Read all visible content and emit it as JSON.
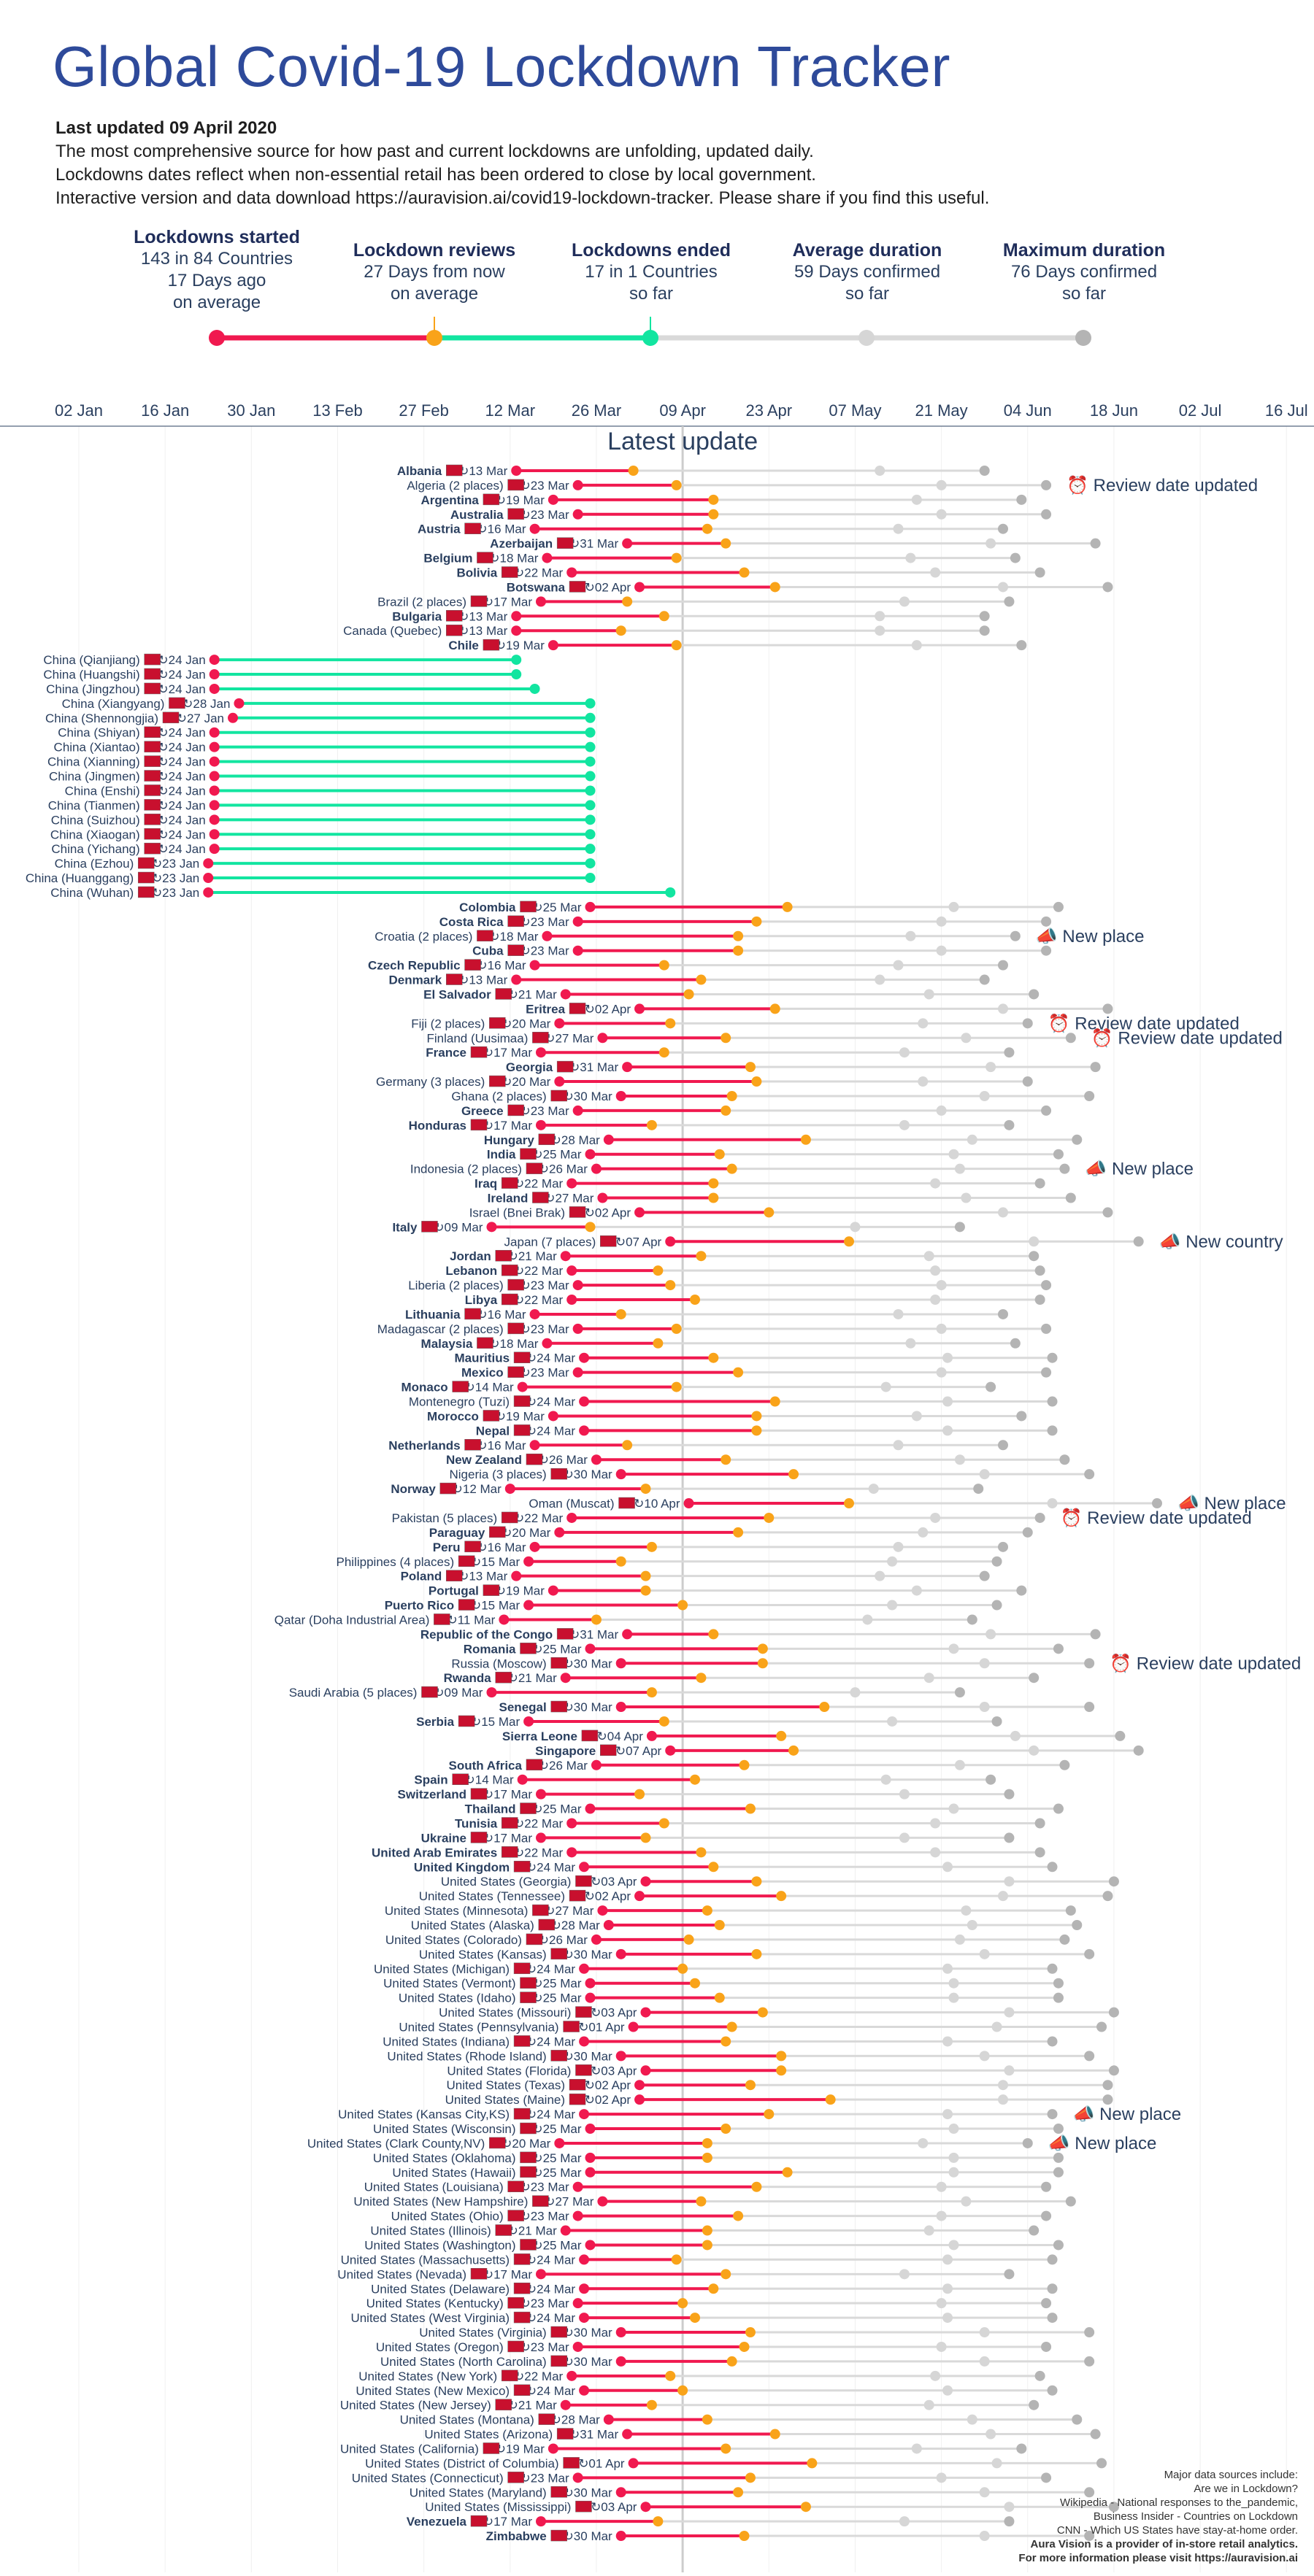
{
  "title": "Global Covid-19 Lockdown Tracker",
  "info": {
    "updated": "Last updated 09 April 2020",
    "line1": "The most comprehensive source for how past and current lockdowns are unfolding, updated daily.",
    "line2": "Lockdowns dates reflect when non-essential retail has been ordered to close by local government.",
    "line3": "Interactive version and data download https://auravision.ai/covid19-lockdown-tracker. Please share if you find this useful."
  },
  "stats": [
    {
      "title": "Lockdowns started",
      "l1": "143 in 84 Countries",
      "l2": "17 Days ago",
      "l3": "on average"
    },
    {
      "title": "Lockdown reviews",
      "l1": "27 Days from now",
      "l2": "on average",
      "l3": ""
    },
    {
      "title": "Lockdowns ended",
      "l1": "17 in 1 Countries",
      "l2": "so far",
      "l3": ""
    },
    {
      "title": "Average duration",
      "l1": "59 Days confirmed",
      "l2": "so far",
      "l3": ""
    },
    {
      "title": "Maximum duration",
      "l1": "76 Days confirmed",
      "l2": "so far",
      "l3": ""
    }
  ],
  "colors": {
    "started": "#f0194f",
    "review": "#f9a319",
    "ended": "#12e5a0",
    "gray": "#b4b4b4",
    "line": "#d9d9d9",
    "text": "#2a3f5f"
  },
  "chart_data": {
    "type": "timeline",
    "latest_update_label": "Latest update",
    "latest_update_date": "09 Apr",
    "x_ticks": [
      "02 Jan",
      "16 Jan",
      "30 Jan",
      "13 Feb",
      "27 Feb",
      "12 Mar",
      "26 Mar",
      "09 Apr",
      "23 Apr",
      "07 May",
      "21 May",
      "04 Jun",
      "18 Jun",
      "02 Jul",
      "16 Jul"
    ],
    "rows": [
      {
        "label": "Albania",
        "bold": true,
        "start": "13 Mar"
      },
      {
        "label": "Algeria (2 places)",
        "bold": false,
        "start": "23 Mar",
        "note": "Review date updated"
      },
      {
        "label": "Argentina",
        "bold": true,
        "start": "19 Mar"
      },
      {
        "label": "Australia",
        "bold": true,
        "start": "23 Mar"
      },
      {
        "label": "Austria",
        "bold": true,
        "start": "16 Mar"
      },
      {
        "label": "Azerbaijan",
        "bold": true,
        "start": "31 Mar"
      },
      {
        "label": "Belgium",
        "bold": true,
        "start": "18 Mar"
      },
      {
        "label": "Bolivia",
        "bold": true,
        "start": "22 Mar"
      },
      {
        "label": "Botswana",
        "bold": true,
        "start": "02 Apr"
      },
      {
        "label": "Brazil (2 places)",
        "bold": false,
        "start": "17 Mar"
      },
      {
        "label": "Bulgaria",
        "bold": true,
        "start": "13 Mar"
      },
      {
        "label": "Canada (Quebec)",
        "bold": false,
        "start": "13 Mar"
      },
      {
        "label": "Chile",
        "bold": true,
        "start": "19 Mar"
      },
      {
        "label": "China (Qianjiang)",
        "bold": false,
        "start": "24 Jan",
        "ended": true
      },
      {
        "label": "China (Huangshi)",
        "bold": false,
        "start": "24 Jan",
        "ended": true
      },
      {
        "label": "China (Jingzhou)",
        "bold": false,
        "start": "24 Jan",
        "ended": true
      },
      {
        "label": "China (Xiangyang)",
        "bold": false,
        "start": "28 Jan",
        "ended": true
      },
      {
        "label": "China (Shennongjia)",
        "bold": false,
        "start": "27 Jan",
        "ended": true
      },
      {
        "label": "China (Shiyan)",
        "bold": false,
        "start": "24 Jan",
        "ended": true
      },
      {
        "label": "China (Xiantao)",
        "bold": false,
        "start": "24 Jan",
        "ended": true
      },
      {
        "label": "China (Xianning)",
        "bold": false,
        "start": "24 Jan",
        "ended": true
      },
      {
        "label": "China (Jingmen)",
        "bold": false,
        "start": "24 Jan",
        "ended": true
      },
      {
        "label": "China (Enshi)",
        "bold": false,
        "start": "24 Jan",
        "ended": true
      },
      {
        "label": "China (Tianmen)",
        "bold": false,
        "start": "24 Jan",
        "ended": true
      },
      {
        "label": "China (Suizhou)",
        "bold": false,
        "start": "24 Jan",
        "ended": true
      },
      {
        "label": "China (Xiaogan)",
        "bold": false,
        "start": "24 Jan",
        "ended": true
      },
      {
        "label": "China (Yichang)",
        "bold": false,
        "start": "24 Jan",
        "ended": true
      },
      {
        "label": "China (Ezhou)",
        "bold": false,
        "start": "23 Jan",
        "ended": true
      },
      {
        "label": "China (Huanggang)",
        "bold": false,
        "start": "23 Jan",
        "ended": true
      },
      {
        "label": "China (Wuhan)",
        "bold": false,
        "start": "23 Jan",
        "ended": true
      },
      {
        "label": "Colombia",
        "bold": true,
        "start": "25 Mar"
      },
      {
        "label": "Costa Rica",
        "bold": true,
        "start": "23 Mar"
      },
      {
        "label": "Croatia (2 places)",
        "bold": false,
        "start": "18 Mar",
        "note": "New place"
      },
      {
        "label": "Cuba",
        "bold": true,
        "start": "23 Mar"
      },
      {
        "label": "Czech Republic",
        "bold": true,
        "start": "16 Mar"
      },
      {
        "label": "Denmark",
        "bold": true,
        "start": "13 Mar"
      },
      {
        "label": "El Salvador",
        "bold": true,
        "start": "21 Mar"
      },
      {
        "label": "Eritrea",
        "bold": true,
        "start": "02 Apr"
      },
      {
        "label": "Fiji (2 places)",
        "bold": false,
        "start": "20 Mar",
        "note": "Review date updated"
      },
      {
        "label": "Finland (Uusimaa)",
        "bold": false,
        "start": "27 Mar",
        "note": "Review date updated"
      },
      {
        "label": "France",
        "bold": true,
        "start": "17 Mar"
      },
      {
        "label": "Georgia",
        "bold": true,
        "start": "31 Mar"
      },
      {
        "label": "Germany (3 places)",
        "bold": false,
        "start": "20 Mar"
      },
      {
        "label": "Ghana (2 places)",
        "bold": false,
        "start": "30 Mar"
      },
      {
        "label": "Greece",
        "bold": true,
        "start": "23 Mar"
      },
      {
        "label": "Honduras",
        "bold": true,
        "start": "17 Mar"
      },
      {
        "label": "Hungary",
        "bold": true,
        "start": "28 Mar"
      },
      {
        "label": "India",
        "bold": true,
        "start": "25 Mar"
      },
      {
        "label": "Indonesia (2 places)",
        "bold": false,
        "start": "26 Mar",
        "note": "New place"
      },
      {
        "label": "Iraq",
        "bold": true,
        "start": "22 Mar"
      },
      {
        "label": "Ireland",
        "bold": true,
        "start": "27 Mar"
      },
      {
        "label": "Israel (Bnei Brak)",
        "bold": false,
        "start": "02 Apr"
      },
      {
        "label": "Italy",
        "bold": true,
        "start": "09 Mar"
      },
      {
        "label": "Japan (7 places)",
        "bold": false,
        "start": "07 Apr",
        "note": "New country"
      },
      {
        "label": "Jordan",
        "bold": true,
        "start": "21 Mar"
      },
      {
        "label": "Lebanon",
        "bold": true,
        "start": "22 Mar"
      },
      {
        "label": "Liberia (2 places)",
        "bold": false,
        "start": "23 Mar"
      },
      {
        "label": "Libya",
        "bold": true,
        "start": "22 Mar"
      },
      {
        "label": "Lithuania",
        "bold": true,
        "start": "16 Mar"
      },
      {
        "label": "Madagascar (2 places)",
        "bold": false,
        "start": "23 Mar"
      },
      {
        "label": "Malaysia",
        "bold": true,
        "start": "18 Mar"
      },
      {
        "label": "Mauritius",
        "bold": true,
        "start": "24 Mar"
      },
      {
        "label": "Mexico",
        "bold": true,
        "start": "23 Mar"
      },
      {
        "label": "Monaco",
        "bold": true,
        "start": "14 Mar"
      },
      {
        "label": "Montenegro (Tuzi)",
        "bold": false,
        "start": "24 Mar"
      },
      {
        "label": "Morocco",
        "bold": true,
        "start": "19 Mar"
      },
      {
        "label": "Nepal",
        "bold": true,
        "start": "24 Mar"
      },
      {
        "label": "Netherlands",
        "bold": true,
        "start": "16 Mar"
      },
      {
        "label": "New Zealand",
        "bold": true,
        "start": "26 Mar"
      },
      {
        "label": "Nigeria (3 places)",
        "bold": false,
        "start": "30 Mar"
      },
      {
        "label": "Norway",
        "bold": true,
        "start": "12 Mar"
      },
      {
        "label": "Oman (Muscat)",
        "bold": false,
        "start": "10 Apr",
        "note": "New place"
      },
      {
        "label": "Pakistan (5 places)",
        "bold": false,
        "start": "22 Mar",
        "note": "Review date updated"
      },
      {
        "label": "Paraguay",
        "bold": true,
        "start": "20 Mar"
      },
      {
        "label": "Peru",
        "bold": true,
        "start": "16 Mar"
      },
      {
        "label": "Philippines (4 places)",
        "bold": false,
        "start": "15 Mar"
      },
      {
        "label": "Poland",
        "bold": true,
        "start": "13 Mar"
      },
      {
        "label": "Portugal",
        "bold": true,
        "start": "19 Mar"
      },
      {
        "label": "Puerto Rico",
        "bold": true,
        "start": "15 Mar"
      },
      {
        "label": "Qatar (Doha Industrial Area)",
        "bold": false,
        "start": "11 Mar"
      },
      {
        "label": "Republic of the Congo",
        "bold": true,
        "start": "31 Mar"
      },
      {
        "label": "Romania",
        "bold": true,
        "start": "25 Mar"
      },
      {
        "label": "Russia (Moscow)",
        "bold": false,
        "start": "30 Mar",
        "note": "Review date updated"
      },
      {
        "label": "Rwanda",
        "bold": true,
        "start": "21 Mar"
      },
      {
        "label": "Saudi Arabia (5 places)",
        "bold": false,
        "start": "09 Mar"
      },
      {
        "label": "Senegal",
        "bold": true,
        "start": "30 Mar"
      },
      {
        "label": "Serbia",
        "bold": true,
        "start": "15 Mar"
      },
      {
        "label": "Sierra Leone",
        "bold": true,
        "start": "04 Apr"
      },
      {
        "label": "Singapore",
        "bold": true,
        "start": "07 Apr"
      },
      {
        "label": "South Africa",
        "bold": true,
        "start": "26 Mar"
      },
      {
        "label": "Spain",
        "bold": true,
        "start": "14 Mar"
      },
      {
        "label": "Switzerland",
        "bold": true,
        "start": "17 Mar"
      },
      {
        "label": "Thailand",
        "bold": true,
        "start": "25 Mar"
      },
      {
        "label": "Tunisia",
        "bold": true,
        "start": "22 Mar"
      },
      {
        "label": "Ukraine",
        "bold": true,
        "start": "17 Mar"
      },
      {
        "label": "United Arab Emirates",
        "bold": true,
        "start": "22 Mar"
      },
      {
        "label": "United Kingdom",
        "bold": true,
        "start": "24 Mar"
      },
      {
        "label": "United States (Georgia)",
        "bold": false,
        "start": "03 Apr"
      },
      {
        "label": "United States (Tennessee)",
        "bold": false,
        "start": "02 Apr"
      },
      {
        "label": "United States (Minnesota)",
        "bold": false,
        "start": "27 Mar"
      },
      {
        "label": "United States (Alaska)",
        "bold": false,
        "start": "28 Mar"
      },
      {
        "label": "United States (Colorado)",
        "bold": false,
        "start": "26 Mar"
      },
      {
        "label": "United States (Kansas)",
        "bold": false,
        "start": "30 Mar"
      },
      {
        "label": "United States (Michigan)",
        "bold": false,
        "start": "24 Mar"
      },
      {
        "label": "United States (Vermont)",
        "bold": false,
        "start": "25 Mar"
      },
      {
        "label": "United States (Idaho)",
        "bold": false,
        "start": "25 Mar"
      },
      {
        "label": "United States (Missouri)",
        "bold": false,
        "start": "03 Apr"
      },
      {
        "label": "United States (Pennsylvania)",
        "bold": false,
        "start": "01 Apr"
      },
      {
        "label": "United States (Indiana)",
        "bold": false,
        "start": "24 Mar"
      },
      {
        "label": "United States (Rhode Island)",
        "bold": false,
        "start": "30 Mar"
      },
      {
        "label": "United States (Florida)",
        "bold": false,
        "start": "03 Apr"
      },
      {
        "label": "United States (Texas)",
        "bold": false,
        "start": "02 Apr"
      },
      {
        "label": "United States (Maine)",
        "bold": false,
        "start": "02 Apr"
      },
      {
        "label": "United States (Kansas City,KS)",
        "bold": false,
        "start": "24 Mar",
        "note": "New place"
      },
      {
        "label": "United States (Wisconsin)",
        "bold": false,
        "start": "25 Mar"
      },
      {
        "label": "United States (Clark County,NV)",
        "bold": false,
        "start": "20 Mar",
        "note": "New place"
      },
      {
        "label": "United States (Oklahoma)",
        "bold": false,
        "start": "25 Mar"
      },
      {
        "label": "United States (Hawaii)",
        "bold": false,
        "start": "25 Mar"
      },
      {
        "label": "United States (Louisiana)",
        "bold": false,
        "start": "23 Mar"
      },
      {
        "label": "United States (New Hampshire)",
        "bold": false,
        "start": "27 Mar"
      },
      {
        "label": "United States (Ohio)",
        "bold": false,
        "start": "23 Mar"
      },
      {
        "label": "United States (Illinois)",
        "bold": false,
        "start": "21 Mar"
      },
      {
        "label": "United States (Washington)",
        "bold": false,
        "start": "25 Mar"
      },
      {
        "label": "United States (Massachusetts)",
        "bold": false,
        "start": "24 Mar"
      },
      {
        "label": "United States (Nevada)",
        "bold": false,
        "start": "17 Mar"
      },
      {
        "label": "United States (Delaware)",
        "bold": false,
        "start": "24 Mar"
      },
      {
        "label": "United States (Kentucky)",
        "bold": false,
        "start": "23 Mar"
      },
      {
        "label": "United States (West Virginia)",
        "bold": false,
        "start": "24 Mar"
      },
      {
        "label": "United States (Virginia)",
        "bold": false,
        "start": "30 Mar"
      },
      {
        "label": "United States (Oregon)",
        "bold": false,
        "start": "23 Mar"
      },
      {
        "label": "United States (North Carolina)",
        "bold": false,
        "start": "30 Mar"
      },
      {
        "label": "United States (New York)",
        "bold": false,
        "start": "22 Mar"
      },
      {
        "label": "United States (New Mexico)",
        "bold": false,
        "start": "24 Mar"
      },
      {
        "label": "United States (New Jersey)",
        "bold": false,
        "start": "21 Mar"
      },
      {
        "label": "United States (Montana)",
        "bold": false,
        "start": "28 Mar"
      },
      {
        "label": "United States (Arizona)",
        "bold": false,
        "start": "31 Mar"
      },
      {
        "label": "United States (California)",
        "bold": false,
        "start": "19 Mar"
      },
      {
        "label": "United States (District of Columbia)",
        "bold": false,
        "start": "01 Apr"
      },
      {
        "label": "United States (Connecticut)",
        "bold": false,
        "start": "23 Mar"
      },
      {
        "label": "United States (Maryland)",
        "bold": false,
        "start": "30 Mar"
      },
      {
        "label": "United States (Mississippi)",
        "bold": false,
        "start": "03 Apr"
      },
      {
        "label": "Venezuela",
        "bold": true,
        "start": "17 Mar"
      },
      {
        "label": "Zimbabwe",
        "bold": true,
        "start": "30 Mar"
      }
    ]
  },
  "sources": {
    "l1": "Major data sources include:",
    "l2": "Are we in Lockdown?",
    "l3": "Wikipedia - National responses to the_pandemic,",
    "l4": "Business Insider - Countries on Lockdown",
    "l5": "CNN - Which US States have stay-at-home order.",
    "l6": "Aura Vision is a provider of in-store retail analytics.",
    "l7": "For more information please visit https://auravision.ai"
  }
}
